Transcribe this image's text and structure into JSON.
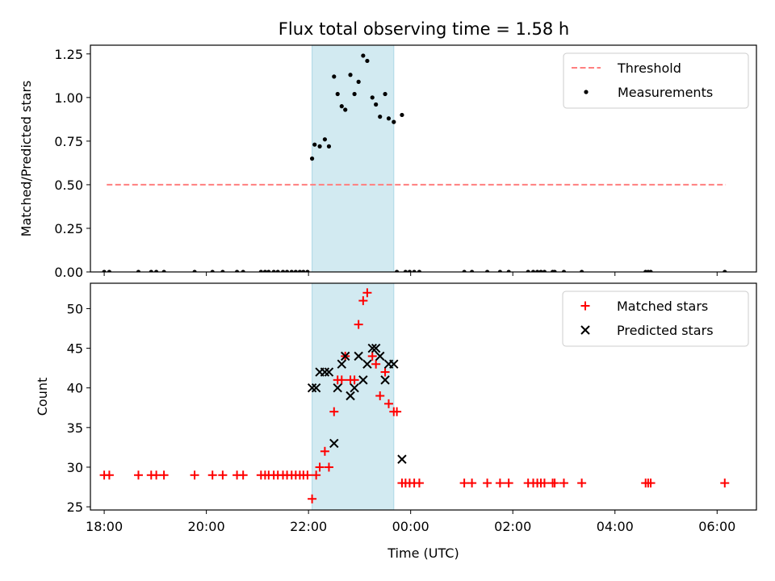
{
  "title": "Flux total observing time = 1.58 h",
  "colors": {
    "threshold": "#ff7f7f",
    "measurement": "#000000",
    "matched": "#ff0000",
    "predicted": "#000000",
    "shade": "#add8e6"
  },
  "chart_data": [
    {
      "type": "scatter",
      "ylabel": "Matched/Predicted stars",
      "xlim": [
        -0.27,
        12.77
      ],
      "ylim": [
        0,
        1.3
      ],
      "yticks": [
        0,
        0.25,
        0.5,
        0.75,
        1.0,
        1.25
      ],
      "ytick_labels": [
        "0.00",
        "0.25",
        "0.50",
        "0.75",
        "1.00",
        "1.25"
      ],
      "shade_x": [
        4.07,
        5.67
      ],
      "legend": {
        "position": "top-right",
        "entries": [
          "Threshold",
          "Measurements"
        ]
      },
      "threshold": {
        "name": "Threshold",
        "y": 0.5,
        "x": [
          0.05,
          12.17
        ]
      },
      "series": [
        {
          "name": "Measurements",
          "x": [
            0.0,
            0.1,
            0.67,
            0.92,
            1.02,
            1.17,
            1.77,
            2.12,
            2.32,
            2.6,
            2.72,
            3.07,
            3.15,
            3.22,
            3.32,
            3.4,
            3.5,
            3.58,
            3.67,
            3.75,
            3.83,
            3.9,
            3.98,
            4.07,
            4.12,
            4.22,
            4.32,
            4.4,
            4.5,
            4.57,
            4.65,
            4.72,
            4.82,
            4.9,
            4.98,
            5.07,
            5.15,
            5.25,
            5.32,
            5.4,
            5.5,
            5.57,
            5.67,
            5.73,
            5.83,
            5.9,
            5.98,
            6.07,
            6.17,
            7.05,
            7.2,
            7.5,
            7.75,
            7.92,
            8.3,
            8.4,
            8.48,
            8.55,
            8.62,
            8.78,
            8.82,
            9.0,
            9.35,
            10.6,
            10.65,
            10.7,
            12.15
          ],
          "y": [
            0,
            0,
            0,
            0,
            0,
            0,
            0,
            0,
            0,
            0,
            0,
            0,
            0,
            0,
            0,
            0,
            0,
            0,
            0,
            0,
            0,
            0,
            0,
            0.65,
            0.73,
            0.72,
            0.76,
            0.72,
            1.12,
            1.02,
            0.95,
            0.93,
            1.13,
            1.02,
            1.09,
            1.24,
            1.21,
            1.0,
            0.96,
            0.89,
            1.02,
            0.88,
            0.86,
            0,
            0.9,
            0,
            0,
            0,
            0,
            0,
            0,
            0,
            0,
            0,
            0,
            0,
            0,
            0,
            0,
            0,
            0,
            0,
            0,
            0,
            0,
            0,
            0
          ]
        }
      ]
    },
    {
      "type": "scatter",
      "xlabel": "Time (UTC)",
      "ylabel": "Count",
      "xlim": [
        -0.27,
        12.77
      ],
      "ylim": [
        24.6,
        53.2
      ],
      "yticks": [
        25,
        30,
        35,
        40,
        45,
        50
      ],
      "ytick_labels": [
        "25",
        "30",
        "35",
        "40",
        "45",
        "50"
      ],
      "xticks": [
        0,
        2,
        4,
        6,
        8,
        10,
        12
      ],
      "xtick_labels": [
        "18:00",
        "20:00",
        "22:00",
        "00:00",
        "02:00",
        "04:00",
        "06:00"
      ],
      "shade_x": [
        4.07,
        5.67
      ],
      "legend": {
        "position": "top-right",
        "entries": [
          "Matched stars",
          "Predicted stars"
        ]
      },
      "series": [
        {
          "name": "Matched stars",
          "marker": "plus",
          "x": [
            0.0,
            0.1,
            0.67,
            0.92,
            1.02,
            1.17,
            1.77,
            2.12,
            2.32,
            2.6,
            2.72,
            3.07,
            3.15,
            3.22,
            3.32,
            3.4,
            3.5,
            3.58,
            3.67,
            3.75,
            3.83,
            3.9,
            3.98,
            4.07,
            4.15,
            4.22,
            4.32,
            4.4,
            4.5,
            4.57,
            4.65,
            4.72,
            4.82,
            4.9,
            4.98,
            5.07,
            5.15,
            5.25,
            5.32,
            5.4,
            5.5,
            5.57,
            5.67,
            5.73,
            5.83,
            5.9,
            5.98,
            6.07,
            6.17,
            7.05,
            7.2,
            7.5,
            7.75,
            7.92,
            8.3,
            8.4,
            8.48,
            8.55,
            8.62,
            8.78,
            8.82,
            9.0,
            9.35,
            10.6,
            10.65,
            10.7,
            12.15
          ],
          "y": [
            29,
            29,
            29,
            29,
            29,
            29,
            29,
            29,
            29,
            29,
            29,
            29,
            29,
            29,
            29,
            29,
            29,
            29,
            29,
            29,
            29,
            29,
            29,
            26,
            29,
            30,
            32,
            30,
            37,
            41,
            41,
            44,
            41,
            41,
            48,
            51,
            52,
            44,
            43,
            39,
            42,
            38,
            37,
            37,
            28,
            28,
            28,
            28,
            28,
            28,
            28,
            28,
            28,
            28,
            28,
            28,
            28,
            28,
            28,
            28,
            28,
            28,
            28,
            28,
            28,
            28,
            28
          ]
        },
        {
          "name": "Predicted stars",
          "marker": "x",
          "x": [
            4.07,
            4.15,
            4.22,
            4.32,
            4.4,
            4.5,
            4.57,
            4.65,
            4.72,
            4.82,
            4.9,
            4.98,
            5.07,
            5.15,
            5.25,
            5.32,
            5.4,
            5.5,
            5.57,
            5.67,
            5.83
          ],
          "y": [
            40,
            40,
            42,
            42,
            42,
            33,
            40,
            43,
            44,
            39,
            40,
            44,
            41,
            43,
            45,
            45,
            44,
            41,
            43,
            43,
            31
          ]
        }
      ]
    }
  ]
}
